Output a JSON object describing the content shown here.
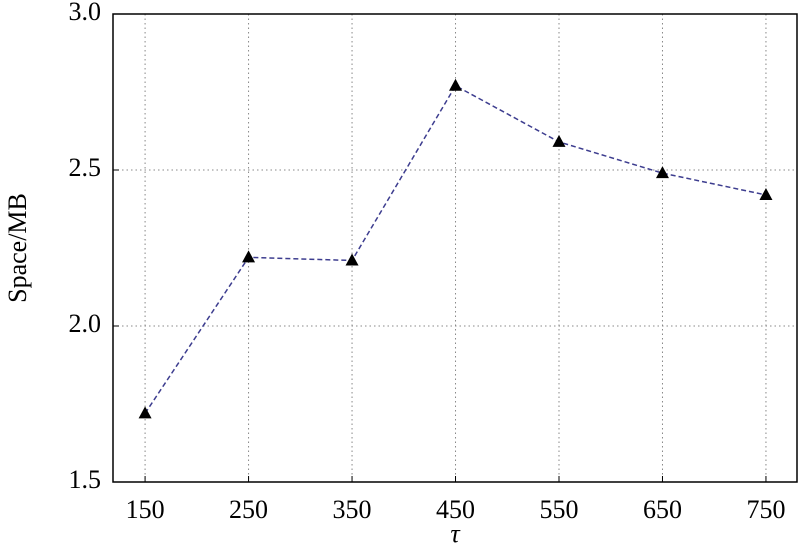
{
  "chart_data": {
    "type": "line",
    "x_label": "τ",
    "y_label": "Space/MB",
    "x": [
      150,
      250,
      350,
      450,
      550,
      650,
      750
    ],
    "series": [
      {
        "color": "#3d3d8f",
        "marker_color": "#000000",
        "values": [
          1.72,
          2.22,
          2.21,
          2.77,
          2.59,
          2.49,
          2.42
        ]
      }
    ],
    "xlim": [
      119,
      780
    ],
    "xticks": [
      150,
      250,
      350,
      450,
      550,
      650,
      750
    ],
    "ylim": [
      1.5,
      3.0
    ],
    "yticks": [
      1.5,
      {
        "value": 2,
        "label": "2.0"
      },
      2.5,
      {
        "value": 3,
        "label": "3.0"
      }
    ],
    "grid": true
  }
}
